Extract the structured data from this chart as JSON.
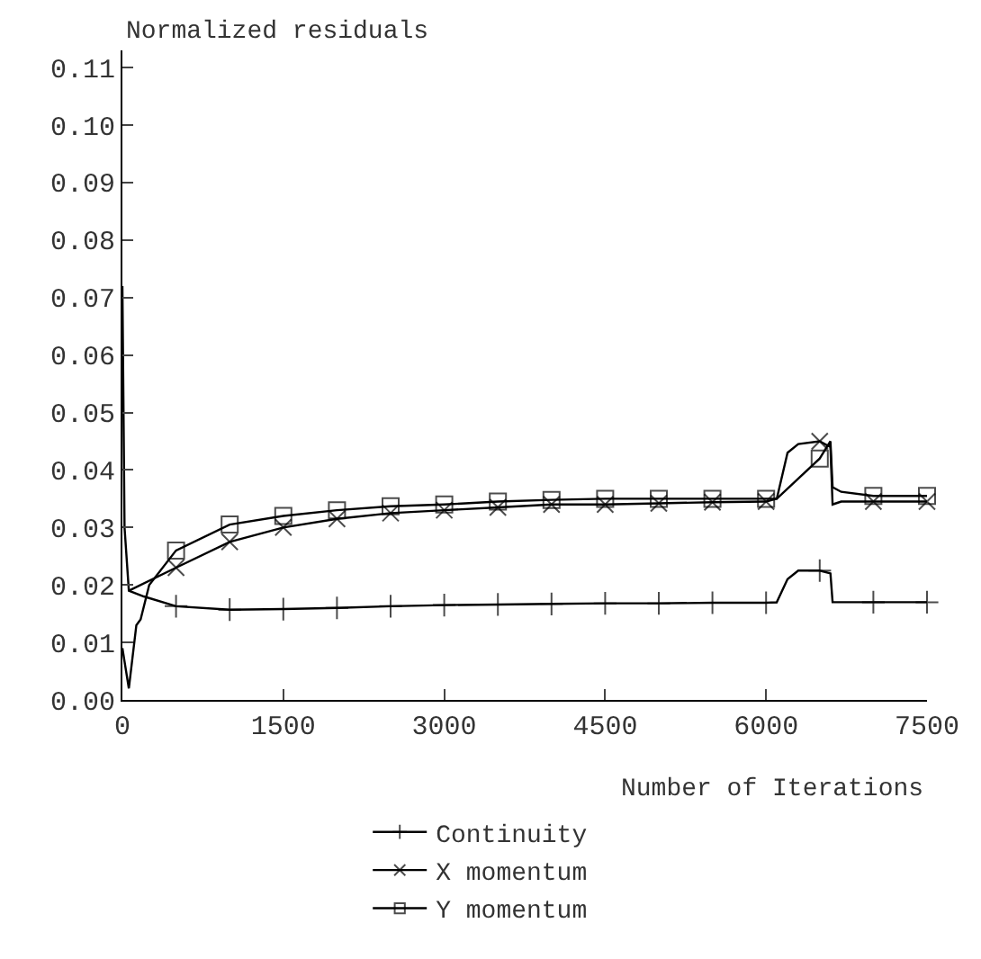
{
  "chart_data": {
    "type": "line",
    "ylabel": "Normalized residuals",
    "xlabel": "Number of Iterations",
    "xlim": [
      0,
      7500
    ],
    "xticks": [
      0,
      1500,
      3000,
      4500,
      6000,
      7500
    ],
    "ylim": [
      0,
      0.113
    ],
    "yticks": [
      {
        "value": 0,
        "label": "0.00"
      },
      {
        "value": 0.01,
        "label": "0.01"
      },
      {
        "value": 0.02,
        "label": "0.02"
      },
      {
        "value": 0.03,
        "label": "0.03"
      },
      {
        "value": 0.04,
        "label": "0.04"
      },
      {
        "value": 0.05,
        "label": "0.05"
      },
      {
        "value": 0.06,
        "label": "0.06"
      },
      {
        "value": 0.07,
        "label": "0.07"
      },
      {
        "value": 0.08,
        "label": "0.08"
      },
      {
        "value": 0.09,
        "label": "0.09"
      },
      {
        "value": 0.1,
        "label": "0.10"
      },
      {
        "value": 0.11,
        "label": "0.11"
      }
    ],
    "legend": "bottom",
    "line_style": "solid",
    "series": [
      {
        "name": "Continuity",
        "color": "#000000",
        "marker": "cross",
        "x": [
          0,
          20,
          60,
          200,
          500,
          1000,
          1500,
          2000,
          2500,
          3000,
          3500,
          4000,
          4500,
          5000,
          5500,
          6000,
          6100,
          6200,
          6300,
          6500,
          6600,
          6620,
          7000,
          7500
        ],
        "values": [
          0.072,
          0.03,
          0.019,
          0.018,
          0.0163,
          0.0157,
          0.0158,
          0.016,
          0.0163,
          0.0165,
          0.0166,
          0.0167,
          0.0168,
          0.0168,
          0.0169,
          0.0169,
          0.017,
          0.021,
          0.0225,
          0.0225,
          0.022,
          0.017,
          0.017,
          0.017
        ]
      },
      {
        "name": "X momentum",
        "color": "#000000",
        "marker": "x",
        "x": [
          60,
          500,
          1000,
          1500,
          2000,
          2500,
          3000,
          3500,
          4000,
          4500,
          5000,
          5500,
          6000,
          6100,
          6200,
          6300,
          6500,
          6600,
          6620,
          6700,
          7000,
          7500
        ],
        "values": [
          0.019,
          0.023,
          0.0275,
          0.03,
          0.0315,
          0.0325,
          0.033,
          0.0335,
          0.034,
          0.034,
          0.0342,
          0.0344,
          0.0345,
          0.035,
          0.043,
          0.0445,
          0.045,
          0.044,
          0.034,
          0.0345,
          0.0345,
          0.0345
        ]
      },
      {
        "name": "Y momentum",
        "color": "#000000",
        "marker": "square",
        "x": [
          0,
          60,
          130,
          170,
          250,
          500,
          1000,
          1500,
          2000,
          2500,
          3000,
          3500,
          4000,
          4500,
          5000,
          5500,
          6000,
          6100,
          6500,
          6600,
          6620,
          6700,
          7000,
          7500
        ],
        "values": [
          0.009,
          0.002,
          0.013,
          0.014,
          0.02,
          0.026,
          0.0305,
          0.032,
          0.033,
          0.0337,
          0.034,
          0.0345,
          0.0348,
          0.035,
          0.035,
          0.035,
          0.035,
          0.035,
          0.042,
          0.045,
          0.037,
          0.0362,
          0.0355,
          0.0355
        ]
      }
    ]
  }
}
